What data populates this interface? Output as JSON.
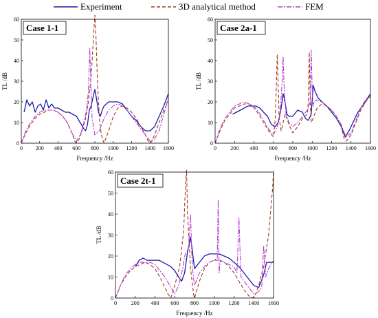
{
  "legend": [
    {
      "name": "Experiment",
      "color": "#1a1aa6",
      "dash": "solid"
    },
    {
      "name": "3D analytical method",
      "color": "#a0361e",
      "dash": "dashed"
    },
    {
      "name": "FEM",
      "color": "#b23ad6",
      "dash": "dashdot"
    }
  ],
  "chart_data": [
    {
      "type": "line",
      "title": "Case 1-1",
      "xlabel": "Frequency /Hz",
      "ylabel": "TL /dB",
      "xlim": [
        0,
        1600
      ],
      "ylim": [
        0,
        60
      ],
      "xticks": [
        0,
        200,
        400,
        600,
        800,
        1000,
        1200,
        1400,
        1600
      ],
      "yticks": [
        0,
        10,
        20,
        30,
        40,
        50,
        60
      ],
      "series": [
        {
          "name": "Experiment",
          "x": [
            30,
            60,
            90,
            120,
            150,
            180,
            210,
            240,
            270,
            300,
            330,
            360,
            400,
            440,
            480,
            520,
            560,
            600,
            640,
            680,
            700,
            720,
            740,
            760,
            780,
            800,
            820,
            840,
            860,
            880,
            900,
            950,
            1000,
            1050,
            1100,
            1150,
            1200,
            1250,
            1300,
            1350,
            1400,
            1450,
            1500,
            1550,
            1600
          ],
          "y": [
            15,
            21,
            18,
            20,
            15,
            18,
            19,
            16,
            21,
            17,
            19,
            17,
            17,
            16,
            15,
            15,
            14,
            13,
            10,
            7,
            6,
            9,
            16,
            18,
            22,
            26,
            21,
            15,
            13,
            16,
            18,
            20,
            20,
            20,
            19,
            16,
            13,
            11,
            8,
            6,
            6,
            8,
            13,
            18,
            24
          ]
        },
        {
          "name": "3D analytical method",
          "x": [
            0,
            50,
            100,
            150,
            200,
            250,
            300,
            350,
            400,
            450,
            500,
            550,
            580,
            600,
            630,
            660,
            700,
            730,
            760,
            790,
            800,
            810,
            830,
            850,
            870,
            900,
            950,
            1000,
            1050,
            1100,
            1150,
            1200,
            1250,
            1300,
            1350,
            1380,
            1400,
            1420,
            1450,
            1500,
            1550,
            1600
          ],
          "y": [
            0,
            5,
            9,
            12,
            14,
            15,
            16,
            16,
            15,
            13,
            10,
            5,
            1,
            0,
            2,
            6,
            12,
            20,
            32,
            55,
            62,
            55,
            28,
            12,
            4,
            0,
            6,
            13,
            17,
            18,
            17,
            15,
            12,
            8,
            4,
            1,
            0,
            1,
            4,
            10,
            16,
            20
          ]
        },
        {
          "name": "FEM",
          "x": [
            0,
            50,
            100,
            150,
            200,
            250,
            300,
            350,
            400,
            450,
            500,
            550,
            600,
            650,
            680,
            710,
            730,
            745,
            755,
            770,
            800,
            850,
            900,
            950,
            1000,
            1050,
            1100,
            1150,
            1200,
            1250,
            1300,
            1350,
            1400,
            1450,
            1500,
            1550,
            1600
          ],
          "y": [
            0,
            6,
            10,
            13,
            15,
            16,
            16,
            16,
            15,
            13,
            10,
            5,
            1,
            5,
            10,
            16,
            25,
            46,
            30,
            12,
            4,
            6,
            12,
            16,
            18,
            19,
            18,
            16,
            13,
            10,
            7,
            4,
            1,
            2,
            6,
            14,
            22
          ]
        }
      ]
    },
    {
      "type": "line",
      "title": "Case 2a-1",
      "xlabel": "Frequency /Hz",
      "ylabel": "TL /dB",
      "xlim": [
        0,
        1600
      ],
      "ylim": [
        0,
        60
      ],
      "xticks": [
        0,
        200,
        400,
        600,
        800,
        1000,
        1200,
        1400,
        1600
      ],
      "yticks": [
        0,
        10,
        20,
        30,
        40,
        50,
        60
      ],
      "series": [
        {
          "name": "Experiment",
          "x": [
            180,
            220,
            260,
            300,
            340,
            380,
            420,
            460,
            500,
            540,
            580,
            620,
            650,
            680,
            700,
            720,
            740,
            760,
            800,
            850,
            900,
            930,
            960,
            990,
            1010,
            1030,
            1060,
            1100,
            1150,
            1200,
            1250,
            1300,
            1340,
            1380,
            1420,
            1460,
            1500,
            1550,
            1600
          ],
          "y": [
            14,
            15,
            16,
            17,
            18,
            18,
            18,
            17,
            15,
            13,
            9,
            8,
            10,
            17,
            24,
            20,
            14,
            13,
            13,
            16,
            15,
            12,
            11,
            14,
            28,
            25,
            22,
            20,
            18,
            15,
            12,
            8,
            3,
            6,
            10,
            14,
            17,
            20,
            24
          ]
        },
        {
          "name": "3D analytical method",
          "x": [
            0,
            50,
            100,
            150,
            200,
            250,
            300,
            350,
            400,
            450,
            500,
            550,
            600,
            620,
            640,
            660,
            680,
            700,
            720,
            740,
            760,
            800,
            850,
            900,
            950,
            960,
            970,
            980,
            990,
            1000,
            1050,
            1100,
            1150,
            1200,
            1250,
            1300,
            1330,
            1350,
            1400,
            1450,
            1500,
            1550,
            1600
          ],
          "y": [
            0,
            6,
            11,
            14,
            17,
            18,
            19,
            19,
            17,
            14,
            10,
            6,
            3,
            12,
            43,
            12,
            6,
            10,
            14,
            12,
            9,
            5,
            8,
            12,
            14,
            20,
            44,
            20,
            10,
            11,
            17,
            19,
            18,
            16,
            13,
            8,
            2,
            1,
            4,
            10,
            16,
            20,
            23
          ]
        },
        {
          "name": "FEM",
          "x": [
            0,
            50,
            100,
            150,
            200,
            250,
            300,
            350,
            400,
            450,
            500,
            550,
            600,
            640,
            670,
            690,
            700,
            710,
            730,
            760,
            800,
            850,
            900,
            950,
            980,
            990,
            1000,
            1010,
            1020,
            1050,
            1100,
            1150,
            1200,
            1250,
            1300,
            1330,
            1350,
            1400,
            1450,
            1500,
            1550,
            1600
          ],
          "y": [
            0,
            7,
            12,
            15,
            18,
            19,
            20,
            19,
            18,
            15,
            11,
            7,
            4,
            8,
            14,
            30,
            42,
            28,
            14,
            10,
            8,
            10,
            13,
            16,
            20,
            45,
            25,
            18,
            20,
            21,
            20,
            18,
            16,
            13,
            9,
            5,
            3,
            5,
            11,
            17,
            21,
            24
          ]
        }
      ]
    },
    {
      "type": "line",
      "title": "Case 2t-1",
      "xlabel": "Frequency /Hz",
      "ylabel": "TL /dB",
      "xlim": [
        0,
        1600
      ],
      "ylim": [
        0,
        60
      ],
      "xticks": [
        0,
        200,
        400,
        600,
        800,
        1000,
        1200,
        1400,
        1600
      ],
      "yticks": [
        0,
        10,
        20,
        30,
        40,
        50,
        60
      ],
      "series": [
        {
          "name": "Experiment",
          "x": [
            200,
            240,
            280,
            320,
            360,
            400,
            440,
            480,
            520,
            560,
            600,
            640,
            670,
            700,
            730,
            760,
            780,
            800,
            850,
            900,
            950,
            1000,
            1050,
            1100,
            1150,
            1200,
            1250,
            1300,
            1350,
            1400,
            1450,
            1500,
            1530,
            1560,
            1600
          ],
          "y": [
            15,
            18,
            19,
            18,
            18,
            18,
            18,
            17,
            16,
            15,
            13,
            10,
            8,
            12,
            22,
            29,
            22,
            14,
            17,
            20,
            21,
            21,
            21,
            20,
            19,
            17,
            15,
            12,
            9,
            6,
            5,
            11,
            17,
            17,
            17
          ]
        },
        {
          "name": "3D analytical method",
          "x": [
            0,
            50,
            100,
            150,
            200,
            250,
            300,
            350,
            400,
            450,
            500,
            530,
            560,
            600,
            650,
            690,
            710,
            720,
            730,
            760,
            790,
            800,
            850,
            900,
            950,
            1000,
            1050,
            1100,
            1150,
            1200,
            1250,
            1300,
            1350,
            1400,
            1420,
            1450,
            1500,
            1550,
            1590,
            1600
          ],
          "y": [
            0,
            6,
            10,
            13,
            15,
            16,
            17,
            16,
            14,
            10,
            5,
            2,
            0,
            6,
            15,
            32,
            55,
            61,
            40,
            14,
            2,
            0,
            8,
            14,
            17,
            18,
            18,
            17,
            15,
            12,
            8,
            4,
            1,
            0,
            2,
            6,
            15,
            30,
            52,
            61
          ]
        },
        {
          "name": "FEM",
          "x": [
            0,
            50,
            100,
            150,
            200,
            250,
            300,
            350,
            400,
            450,
            500,
            550,
            600,
            640,
            680,
            700,
            740,
            760,
            770,
            780,
            800,
            850,
            900,
            950,
            1000,
            1030,
            1040,
            1050,
            1060,
            1100,
            1150,
            1200,
            1230,
            1250,
            1270,
            1300,
            1350,
            1400,
            1450,
            1480,
            1500,
            1520,
            1550,
            1600
          ],
          "y": [
            0,
            6,
            11,
            14,
            16,
            17,
            17,
            17,
            16,
            13,
            10,
            6,
            2,
            6,
            14,
            20,
            24,
            40,
            24,
            14,
            6,
            12,
            15,
            17,
            18,
            19,
            47,
            12,
            18,
            17,
            16,
            15,
            12,
            38,
            10,
            8,
            5,
            2,
            3,
            5,
            25,
            10,
            14,
            18
          ]
        }
      ]
    }
  ]
}
